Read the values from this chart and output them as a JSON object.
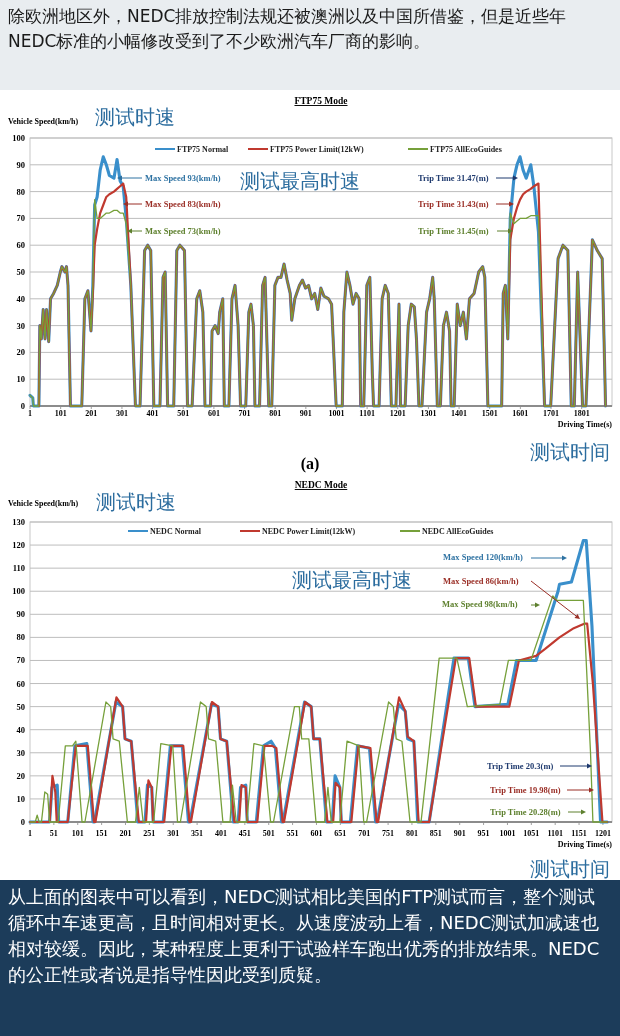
{
  "chart_data": [
    {
      "type": "line",
      "title": "FTP75 Mode",
      "xlabel": "Driving Time(s)",
      "ylabel": "Vehicle Speed(km/h)",
      "annotations": [
        "除欧洲地区外，NEDC排放控制法规还被澳洲以及中国所借鉴，但是近些年NEDC标准的小幅修改受到了不少欧洲汽车厂商的影响。",
        "测试时速",
        "测试最高时速",
        "测试时间",
        "Max Speed 93(km/h)",
        "Max Speed 83(km/h)",
        "Max Speed 73(km/h)",
        "Trip Time 31.47(m)",
        "Trip Time 31.43(m)",
        "Trip Time 31.45(m)",
        "(a)"
      ],
      "xlim": [
        1,
        1900
      ],
      "xticks": [
        1,
        101,
        201,
        301,
        401,
        501,
        601,
        701,
        801,
        901,
        1001,
        1101,
        1201,
        1301,
        1401,
        1501,
        1601,
        1701,
        1801
      ],
      "ylim": [
        0,
        100
      ],
      "yticks": [
        0,
        10,
        20,
        30,
        40,
        50,
        60,
        70,
        80,
        90,
        100
      ],
      "grid": "y",
      "legend": "top",
      "marker": "none",
      "line_style": "solid",
      "x": [
        1,
        10,
        12,
        30,
        33,
        38,
        44,
        50,
        55,
        62,
        68,
        78,
        90,
        100,
        105,
        115,
        120,
        125,
        133,
        170,
        180,
        190,
        200,
        206,
        212,
        220,
        230,
        240,
        250,
        260,
        275,
        285,
        295,
        305,
        315,
        330,
        345,
        360,
        375,
        385,
        395,
        405,
        425,
        435,
        442,
        450,
        470,
        480,
        490,
        505,
        515,
        530,
        545,
        555,
        565,
        572,
        590,
        595,
        605,
        615,
        620,
        630,
        635,
        650,
        660,
        670,
        680,
        688,
        705,
        715,
        722,
        730,
        735,
        750,
        760,
        768,
        780,
        790,
        800,
        810,
        820,
        830,
        840,
        850,
        855,
        865,
        880,
        890,
        900,
        910,
        920,
        930,
        940,
        950,
        960,
        975,
        985,
        1000,
        1020,
        1025,
        1035,
        1045,
        1055,
        1065,
        1075,
        1080,
        1090,
        1100,
        1110,
        1118,
        1122,
        1140,
        1150,
        1160,
        1170,
        1180,
        1195,
        1205,
        1210,
        1225,
        1235,
        1245,
        1255,
        1262,
        1270,
        1280,
        1295,
        1305,
        1315,
        1320,
        1330,
        1340,
        1350,
        1360,
        1370,
        1375,
        1385,
        1395,
        1405,
        1415,
        1425,
        1435,
        1450,
        1465,
        1478,
        1485,
        1495,
        1540,
        1545,
        1552,
        1560,
        1568,
        1580,
        1590,
        1600,
        1610,
        1620,
        1635,
        1645,
        1660,
        1680,
        1700,
        1724,
        1740,
        1756,
        1767,
        1777,
        1788,
        1804,
        1815,
        1836,
        1852,
        1868,
        1879
      ],
      "series": [
        {
          "name": "FTP75 Normal",
          "color": "#3a8fcb",
          "values": [
            4,
            3,
            0,
            0,
            30,
            25,
            36,
            25,
            36,
            24,
            40,
            42,
            45,
            50,
            52,
            50,
            52,
            45,
            0,
            0,
            40,
            43,
            28,
            45,
            75,
            78,
            88,
            93,
            90,
            86,
            85,
            92,
            84,
            82,
            70,
            45,
            0,
            0,
            58,
            60,
            58,
            0,
            0,
            48,
            50,
            0,
            0,
            58,
            60,
            58,
            0,
            0,
            40,
            43,
            35,
            0,
            0,
            28,
            30,
            27,
            35,
            40,
            0,
            0,
            40,
            45,
            30,
            0,
            0,
            35,
            38,
            30,
            0,
            0,
            45,
            48,
            0,
            0,
            45,
            48,
            48,
            53,
            47,
            42,
            32,
            40,
            45,
            47,
            44,
            45,
            40,
            42,
            36,
            44,
            41,
            40,
            38,
            0,
            0,
            35,
            50,
            45,
            38,
            42,
            40,
            0,
            0,
            45,
            48,
            12,
            0,
            0,
            40,
            45,
            42,
            0,
            0,
            38,
            0,
            0,
            30,
            38,
            37,
            25,
            0,
            0,
            35,
            40,
            48,
            40,
            0,
            0,
            30,
            35,
            28,
            0,
            0,
            38,
            30,
            35,
            25,
            40,
            42,
            50,
            52,
            48,
            0,
            0,
            42,
            45,
            25,
            70,
            85,
            90,
            93,
            88,
            85,
            90,
            82,
            65,
            0,
            0,
            55,
            60,
            58,
            0,
            0,
            50,
            0,
            0,
            62,
            58,
            55,
            0
          ]
        },
        {
          "name": "FTP75 Power Limit(12kW)",
          "color": "#c0392f",
          "values": [
            null,
            null,
            null,
            0,
            30,
            25,
            36,
            25,
            36,
            24,
            40,
            42,
            45,
            50,
            52,
            50,
            52,
            45,
            0,
            0,
            40,
            43,
            28,
            42,
            60,
            66,
            72,
            75,
            78,
            79,
            80,
            81,
            82,
            83,
            78,
            45,
            0,
            0,
            58,
            60,
            58,
            0,
            0,
            48,
            50,
            0,
            0,
            58,
            60,
            58,
            0,
            0,
            40,
            43,
            35,
            0,
            0,
            28,
            30,
            27,
            35,
            40,
            0,
            0,
            40,
            45,
            30,
            0,
            0,
            35,
            38,
            30,
            0,
            0,
            45,
            48,
            0,
            0,
            45,
            48,
            48,
            53,
            47,
            42,
            32,
            40,
            45,
            47,
            44,
            45,
            40,
            42,
            36,
            44,
            41,
            40,
            38,
            0,
            0,
            35,
            50,
            45,
            38,
            42,
            40,
            0,
            0,
            45,
            48,
            12,
            0,
            0,
            40,
            45,
            42,
            0,
            0,
            38,
            0,
            0,
            30,
            38,
            37,
            25,
            0,
            0,
            35,
            40,
            48,
            40,
            0,
            0,
            30,
            35,
            28,
            0,
            0,
            38,
            30,
            35,
            25,
            40,
            42,
            50,
            52,
            48,
            0,
            0,
            42,
            45,
            25,
            62,
            70,
            74,
            77,
            79,
            80,
            81,
            82,
            83,
            0,
            0,
            55,
            60,
            58,
            0,
            0,
            50,
            0,
            0,
            62,
            58,
            55,
            0
          ]
        },
        {
          "name": "FTP75 AllEcoGuides",
          "color": "#76a03a",
          "values": [
            4,
            3,
            0,
            0,
            30,
            25,
            36,
            25,
            36,
            24,
            40,
            42,
            45,
            50,
            52,
            50,
            52,
            45,
            0,
            0,
            40,
            43,
            28,
            44,
            77,
            70,
            70,
            71,
            72,
            72,
            73,
            73,
            72,
            72,
            68,
            45,
            0,
            0,
            58,
            60,
            58,
            0,
            0,
            48,
            50,
            0,
            0,
            58,
            60,
            58,
            0,
            0,
            40,
            43,
            35,
            0,
            0,
            28,
            30,
            27,
            35,
            40,
            0,
            0,
            40,
            45,
            30,
            0,
            0,
            35,
            38,
            30,
            0,
            0,
            45,
            48,
            0,
            0,
            45,
            48,
            48,
            53,
            47,
            42,
            32,
            40,
            45,
            47,
            44,
            45,
            40,
            42,
            36,
            44,
            41,
            40,
            38,
            0,
            0,
            35,
            50,
            45,
            38,
            42,
            40,
            0,
            0,
            45,
            48,
            12,
            0,
            0,
            40,
            45,
            42,
            0,
            0,
            38,
            0,
            0,
            30,
            38,
            37,
            25,
            0,
            0,
            35,
            40,
            48,
            40,
            0,
            0,
            30,
            35,
            28,
            0,
            0,
            38,
            30,
            35,
            25,
            40,
            42,
            50,
            52,
            48,
            0,
            0,
            42,
            45,
            25,
            72,
            68,
            69,
            70,
            70,
            70,
            71,
            71,
            71,
            0,
            0,
            55,
            60,
            58,
            0,
            0,
            50,
            0,
            0,
            62,
            58,
            55,
            0
          ]
        }
      ]
    },
    {
      "type": "line",
      "title": "NEDC Mode",
      "xlabel": "Driving Time(s)",
      "ylabel": "Vehicle Speed(km/h)",
      "annotations": [
        "测试时速",
        "测试最高时速",
        "测试时间",
        "Max Speed 120(km/h)",
        "Max Speed 86(km/h)",
        "Max Speed 98(km/h)",
        "Trip Time 20.3(m)",
        "Trip Time 19.98(m)",
        "Trip Time 20.28(m)",
        "从上面的图表中可以看到，NEDC测试相比美国的FTP测试而言，整个测试循环中车速更高，且时间相对更长。从速度波动上看，NEDC测试加减速也相对较缓。因此，某种程度上更利于试验样车跑出优秀的排放结果。NEDC的公正性或者说是指导性因此受到质疑。"
      ],
      "xlim": [
        1,
        1220
      ],
      "xticks": [
        1,
        51,
        101,
        151,
        201,
        251,
        301,
        351,
        401,
        451,
        501,
        551,
        601,
        651,
        701,
        751,
        801,
        851,
        901,
        951,
        1001,
        1051,
        1101,
        1151,
        1201
      ],
      "ylim": [
        0,
        130
      ],
      "yticks": [
        0,
        10,
        20,
        30,
        40,
        50,
        60,
        70,
        80,
        90,
        100,
        110,
        120,
        130
      ],
      "grid": "y",
      "legend": "top",
      "marker": "none",
      "line_style": "solid",
      "series": [
        {
          "name": "NEDC Normal",
          "color": "#3a8fcb",
          "x": [
            1,
            42,
            47,
            58,
            61,
            80,
            95,
            120,
            133,
            136,
            181,
            195,
            200,
            213,
            227,
            242,
            247,
            256,
            259,
            280,
            295,
            320,
            333,
            336,
            381,
            395,
            400,
            413,
            427,
            437,
            442,
            453,
            456,
            475,
            490,
            506,
            515,
            528,
            531,
            576,
            590,
            595,
            608,
            622,
            634,
            640,
            650,
            653,
            672,
            687,
            712,
            725,
            728,
            773,
            787,
            792,
            805,
            813,
            837,
            889,
            919,
            933,
            1002,
            1020,
            1061,
            1107,
            1110,
            1135,
            1160,
            1166,
            1178,
            1196,
            1210
          ],
          "values": [
            0,
            0,
            15,
            16,
            0,
            0,
            33,
            34,
            0,
            0,
            52,
            50,
            36,
            35,
            0,
            0,
            16,
            15,
            0,
            0,
            33,
            33,
            0,
            0,
            51,
            50,
            36,
            35,
            0,
            0,
            15,
            16,
            0,
            0,
            33,
            35,
            32,
            0,
            0,
            52,
            50,
            36,
            36,
            0,
            0,
            20,
            15,
            0,
            0,
            33,
            32,
            0,
            0,
            51,
            48,
            36,
            35,
            0,
            0,
            71,
            71,
            50,
            51,
            70,
            70,
            100,
            103,
            104,
            122,
            122,
            85,
            0,
            0
          ]
        },
        {
          "name": "NEDC Power Limit(12kW)",
          "color": "#c0392f",
          "x": [
            1,
            42,
            48,
            54,
            57,
            80,
            97,
            122,
            135,
            138,
            182,
            195,
            200,
            213,
            229,
            244,
            249,
            256,
            259,
            282,
            297,
            322,
            335,
            338,
            382,
            395,
            400,
            413,
            429,
            439,
            444,
            453,
            456,
            477,
            492,
            508,
            517,
            530,
            533,
            577,
            590,
            595,
            608,
            624,
            636,
            641,
            650,
            653,
            674,
            689,
            714,
            727,
            730,
            774,
            787,
            792,
            805,
            815,
            837,
            893,
            921,
            935,
            1005,
            1025,
            1061,
            1080,
            1110,
            1140,
            1163,
            1168,
            1180,
            1200,
            1210
          ],
          "values": [
            0,
            0,
            20,
            13,
            0,
            0,
            33,
            33,
            0,
            0,
            54,
            50,
            36,
            35,
            0,
            0,
            18,
            15,
            0,
            0,
            33,
            33,
            0,
            0,
            52,
            50,
            36,
            35,
            0,
            0,
            16,
            15,
            0,
            0,
            33,
            33,
            32,
            0,
            0,
            52,
            50,
            36,
            36,
            0,
            0,
            17,
            15,
            0,
            0,
            33,
            32,
            0,
            0,
            54,
            48,
            37,
            35,
            0,
            0,
            71,
            71,
            50,
            50,
            70,
            72,
            75,
            80,
            84,
            86,
            86,
            60,
            0,
            0
          ]
        },
        {
          "name": "NEDC AllEcoGuides",
          "color": "#76a03a",
          "x": [
            1,
            12,
            16,
            20,
            25,
            32,
            38,
            42,
            60,
            75,
            90,
            97,
            110,
            116,
            160,
            170,
            175,
            188,
            205,
            222,
            230,
            238,
            260,
            275,
            300,
            310,
            316,
            358,
            370,
            375,
            390,
            405,
            420,
            425,
            433,
            455,
            470,
            490,
            505,
            511,
            555,
            565,
            570,
            585,
            600,
            618,
            625,
            632,
            650,
            665,
            690,
            700,
            706,
            752,
            762,
            768,
            780,
            797,
            820,
            858,
            895,
            917,
            985,
            1003,
            1050,
            1096,
            1105,
            1160,
            1175,
            1180,
            1210
          ],
          "values": [
            0,
            0,
            3,
            0,
            0,
            13,
            12,
            0,
            0,
            33,
            33,
            35,
            0,
            0,
            52,
            50,
            36,
            35,
            0,
            0,
            15,
            0,
            0,
            34,
            33,
            0,
            0,
            52,
            50,
            36,
            35,
            0,
            0,
            16,
            0,
            0,
            34,
            33,
            0,
            0,
            50,
            50,
            36,
            36,
            0,
            0,
            15,
            0,
            0,
            35,
            33,
            0,
            0,
            52,
            50,
            36,
            35,
            0,
            0,
            71,
            71,
            50,
            51,
            70,
            70,
            98,
            96,
            96,
            30,
            0,
            0
          ]
        }
      ]
    }
  ]
}
